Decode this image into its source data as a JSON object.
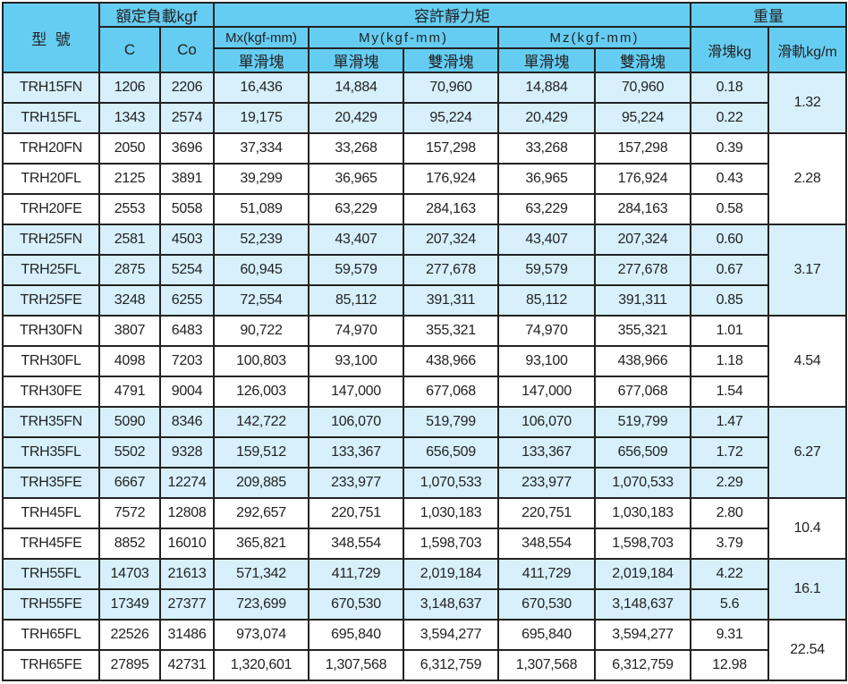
{
  "header": {
    "model": "型  號",
    "rated_load": "額定負載kgf",
    "c": "C",
    "co": "Co",
    "static_moment": "容許靜力矩",
    "mx": "Mx(kgf-mm)",
    "my": "My(kgf-mm)",
    "mz": "Mz(kgf-mm)",
    "single_block": "單滑塊",
    "double_block": "雙滑塊",
    "weight": "重量",
    "block_kg": "滑塊kg",
    "rail_kg_m": "滑軌kg/m"
  },
  "colors": {
    "header_bg": "#66cdf2",
    "alt_row_bg": "#d7f0fc"
  },
  "groups": [
    {
      "rail": "1.32",
      "shaded": true,
      "rows": [
        [
          "TRH15FN",
          "1206",
          "2206",
          "16,436",
          "14,884",
          "70,960",
          "14,884",
          "70,960",
          "0.18"
        ],
        [
          "TRH15FL",
          "1343",
          "2574",
          "19,175",
          "20,429",
          "95,224",
          "20,429",
          "95,224",
          "0.22"
        ]
      ]
    },
    {
      "rail": "2.28",
      "shaded": false,
      "rows": [
        [
          "TRH20FN",
          "2050",
          "3696",
          "37,334",
          "33,268",
          "157,298",
          "33,268",
          "157,298",
          "0.39"
        ],
        [
          "TRH20FL",
          "2125",
          "3891",
          "39,299",
          "36,965",
          "176,924",
          "36,965",
          "176,924",
          "0.43"
        ],
        [
          "TRH20FE",
          "2553",
          "5058",
          "51,089",
          "63,229",
          "284,163",
          "63,229",
          "284,163",
          "0.58"
        ]
      ]
    },
    {
      "rail": "3.17",
      "shaded": true,
      "rows": [
        [
          "TRH25FN",
          "2581",
          "4503",
          "52,239",
          "43,407",
          "207,324",
          "43,407",
          "207,324",
          "0.60"
        ],
        [
          "TRH25FL",
          "2875",
          "5254",
          "60,945",
          "59,579",
          "277,678",
          "59,579",
          "277,678",
          "0.67"
        ],
        [
          "TRH25FE",
          "3248",
          "6255",
          "72,554",
          "85,112",
          "391,311",
          "85,112",
          "391,311",
          "0.85"
        ]
      ]
    },
    {
      "rail": "4.54",
      "shaded": false,
      "rows": [
        [
          "TRH30FN",
          "3807",
          "6483",
          "90,722",
          "74,970",
          "355,321",
          "74,970",
          "355,321",
          "1.01"
        ],
        [
          "TRH30FL",
          "4098",
          "7203",
          "100,803",
          "93,100",
          "438,966",
          "93,100",
          "438,966",
          "1.18"
        ],
        [
          "TRH30FE",
          "4791",
          "9004",
          "126,003",
          "147,000",
          "677,068",
          "147,000",
          "677,068",
          "1.54"
        ]
      ]
    },
    {
      "rail": "6.27",
      "shaded": true,
      "rows": [
        [
          "TRH35FN",
          "5090",
          "8346",
          "142,722",
          "106,070",
          "519,799",
          "106,070",
          "519,799",
          "1.47"
        ],
        [
          "TRH35FL",
          "5502",
          "9328",
          "159,512",
          "133,367",
          "656,509",
          "133,367",
          "656,509",
          "1.72"
        ],
        [
          "TRH35FE",
          "6667",
          "12274",
          "209,885",
          "233,977",
          "1,070,533",
          "233,977",
          "1,070,533",
          "2.29"
        ]
      ]
    },
    {
      "rail": "10.4",
      "shaded": false,
      "rows": [
        [
          "TRH45FL",
          "7572",
          "12808",
          "292,657",
          "220,751",
          "1,030,183",
          "220,751",
          "1,030,183",
          "2.80"
        ],
        [
          "TRH45FE",
          "8852",
          "16010",
          "365,821",
          "348,554",
          "1,598,703",
          "348,554",
          "1,598,703",
          "3.79"
        ]
      ]
    },
    {
      "rail": "16.1",
      "shaded": true,
      "rows": [
        [
          "TRH55FL",
          "14703",
          "21613",
          "571,342",
          "411,729",
          "2,019,184",
          "411,729",
          "2,019,184",
          "4.22"
        ],
        [
          "TRH55FE",
          "17349",
          "27377",
          "723,699",
          "670,530",
          "3,148,637",
          "670,530",
          "3,148,637",
          "5.6"
        ]
      ]
    },
    {
      "rail": "22.54",
      "shaded": false,
      "rows": [
        [
          "TRH65FL",
          "22526",
          "31486",
          "973,074",
          "695,840",
          "3,594,277",
          "695,840",
          "3,594,277",
          "9.31"
        ],
        [
          "TRH65FE",
          "27895",
          "42731",
          "1,320,601",
          "1,307,568",
          "6,312,759",
          "1,307,568",
          "6,312,759",
          "12.98"
        ]
      ]
    }
  ]
}
